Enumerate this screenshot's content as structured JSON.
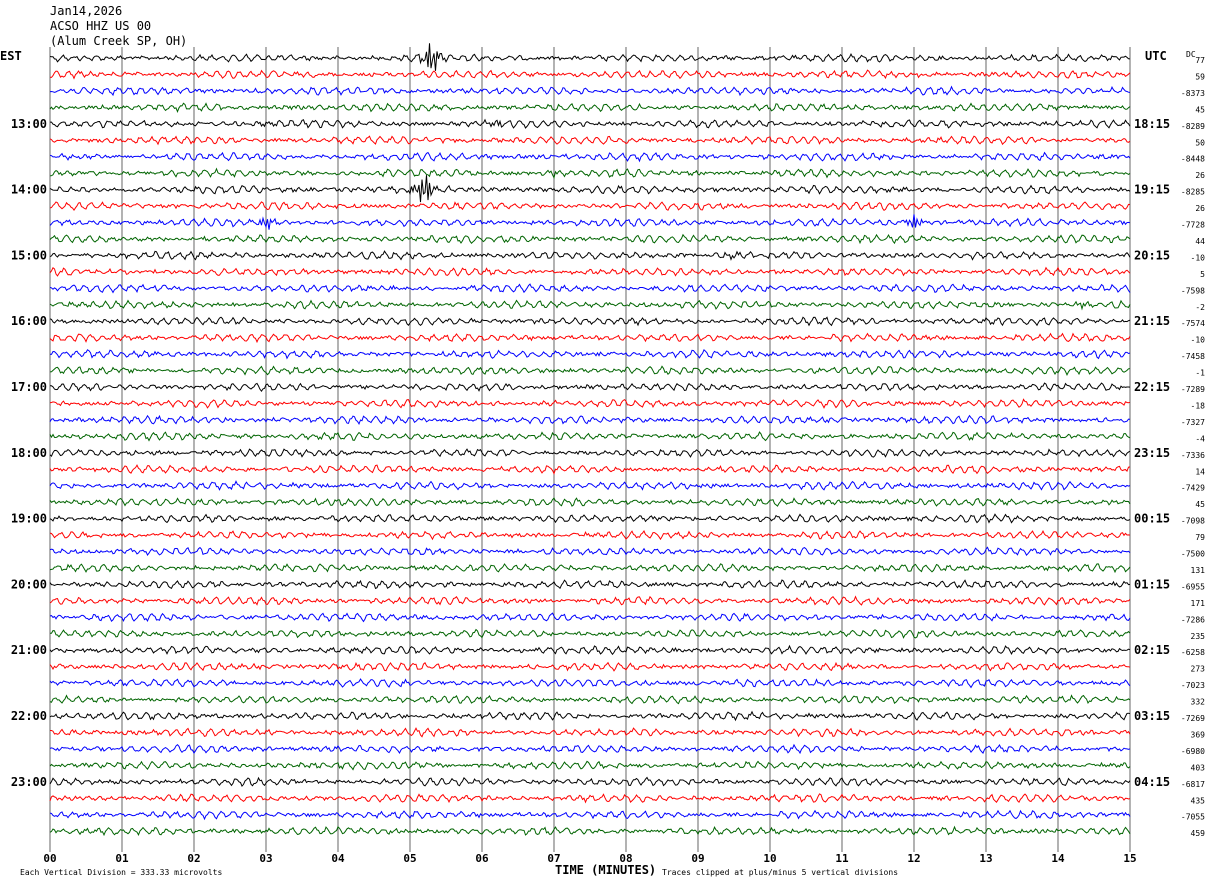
{
  "header": {
    "date": "Jan14,2026",
    "station": "ACSO HHZ US 00",
    "site": "(Alum Creek SP, OH)"
  },
  "labels": {
    "left_tz": "EST",
    "right_tz": "UTC",
    "dc": "DC",
    "xaxis": "TIME (MINUTES)",
    "scale_note": "Each Vertical Division =  333.33 microvolts",
    "clip_note": "Traces clipped at plus/minus 5 vertical divisions"
  },
  "colors": {
    "trace_cycle": [
      "#000000",
      "#ff0000",
      "#0000ff",
      "#006400"
    ],
    "grid": "#000000"
  },
  "chart_data": {
    "type": "line",
    "description_kind": "helicorder",
    "x_ticks": [
      "00",
      "01",
      "02",
      "03",
      "04",
      "05",
      "06",
      "07",
      "08",
      "09",
      "10",
      "11",
      "12",
      "13",
      "14",
      "15"
    ],
    "xlim": [
      0,
      15
    ],
    "traces_per_hour": 4,
    "rows": 48,
    "left_hour_labels": [
      "13:00",
      "14:00",
      "15:00",
      "16:00",
      "17:00",
      "18:00",
      "19:00",
      "20:00",
      "21:00",
      "22:00",
      "23:00"
    ],
    "right_hour_labels": [
      "18:15",
      "19:15",
      "20:15",
      "21:15",
      "22:15",
      "23:15",
      "00:15",
      "01:15",
      "02:15",
      "03:15",
      "04:15"
    ],
    "dc_offsets": [
      "77",
      "59",
      "-8373",
      "45",
      "-8289",
      "50",
      "-8448",
      "26",
      "-8285",
      "26",
      "-7728",
      "44",
      "-10",
      "5",
      "-7598",
      "-2",
      "-7574",
      "-10",
      "-7458",
      "-1",
      "-7289",
      "-18",
      "-7327",
      "-4",
      "-7336",
      "14",
      "-7429",
      "45",
      "-7098",
      "79",
      "-7500",
      "131",
      "-6955",
      "171",
      "-7286",
      "235",
      "-6258",
      "273",
      "-7023",
      "332",
      "-7269",
      "369",
      "-6980",
      "403",
      "-6817",
      "435",
      "-7055",
      "459"
    ],
    "events": [
      {
        "row": 0,
        "minute": 5.3,
        "amplitude": "clipped"
      },
      {
        "row": 8,
        "minute": 5.2,
        "amplitude": "clipped"
      },
      {
        "row": 10,
        "minute": 3.0,
        "amplitude": "moderate"
      },
      {
        "row": 10,
        "minute": 12.0,
        "amplitude": "moderate"
      },
      {
        "row": 4,
        "minute": 6.2,
        "amplitude": "small"
      },
      {
        "row": 7,
        "minute": 7.0,
        "amplitude": "small"
      },
      {
        "row": 12,
        "minute": 9.5,
        "amplitude": "small"
      },
      {
        "row": 15,
        "minute": 14.4,
        "amplitude": "small"
      }
    ]
  }
}
